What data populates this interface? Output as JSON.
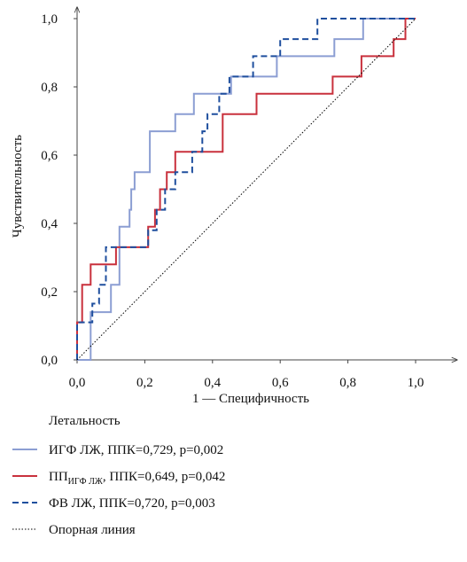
{
  "chart_data": {
    "type": "line",
    "xlabel": "1 — Специфичность",
    "ylabel": "Чувствительность",
    "xlim": [
      0,
      1
    ],
    "ylim": [
      0,
      1
    ],
    "xticks": [
      {
        "value": 0,
        "label": "0,0"
      },
      {
        "value": 0.2,
        "label": "0,2"
      },
      {
        "value": 0.4,
        "label": "0,4"
      },
      {
        "value": 0.6,
        "label": "0,6"
      },
      {
        "value": 0.8,
        "label": "0,8"
      },
      {
        "value": 1,
        "label": "1,0"
      }
    ],
    "yticks": [
      {
        "value": 0,
        "label": "0,0"
      },
      {
        "value": 0.2,
        "label": "0,2"
      },
      {
        "value": 0.4,
        "label": "0,4"
      },
      {
        "value": 0.6,
        "label": "0,6"
      },
      {
        "value": 0.8,
        "label": "0,8"
      },
      {
        "value": 1,
        "label": "1,0"
      }
    ],
    "legend_title": "Летальность",
    "series": [
      {
        "name": "ИГФ ЛЖ, ППК=0,729, p=0,002",
        "color": "#8c9ed3",
        "dash": "solid",
        "x": [
          0,
          0.04,
          0.04,
          0.1,
          0.1,
          0.125,
          0.125,
          0.155,
          0.155,
          0.16,
          0.16,
          0.17,
          0.17,
          0.215,
          0.215,
          0.29,
          0.29,
          0.345,
          0.345,
          0.455,
          0.455,
          0.59,
          0.59,
          0.76,
          0.76,
          0.845,
          0.845,
          1.0
        ],
        "values": [
          0,
          0,
          0.14,
          0.14,
          0.22,
          0.22,
          0.39,
          0.39,
          0.44,
          0.44,
          0.5,
          0.5,
          0.55,
          0.55,
          0.67,
          0.67,
          0.72,
          0.72,
          0.78,
          0.78,
          0.83,
          0.83,
          0.89,
          0.89,
          0.94,
          0.94,
          1.0,
          1.0
        ]
      },
      {
        "name": "ПП",
        "name_sub": "ИГФ ЛЖ",
        "name_tail": ", ППК=0,649, p=0,042",
        "color": "#c9313d",
        "dash": "solid",
        "x": [
          0,
          0,
          0.015,
          0.015,
          0.04,
          0.04,
          0.115,
          0.115,
          0.21,
          0.21,
          0.23,
          0.23,
          0.245,
          0.245,
          0.265,
          0.265,
          0.29,
          0.29,
          0.43,
          0.43,
          0.53,
          0.53,
          0.755,
          0.755,
          0.84,
          0.84,
          0.935,
          0.935,
          0.97,
          0.97,
          1.0
        ],
        "values": [
          0,
          0.11,
          0.11,
          0.22,
          0.22,
          0.28,
          0.28,
          0.33,
          0.33,
          0.39,
          0.39,
          0.44,
          0.44,
          0.5,
          0.5,
          0.55,
          0.55,
          0.61,
          0.61,
          0.72,
          0.72,
          0.78,
          0.78,
          0.83,
          0.83,
          0.89,
          0.89,
          0.94,
          0.94,
          1.0,
          1.0
        ]
      },
      {
        "name": "ФВ ЛЖ, ППК=0,720, p=0,003",
        "color": "#1f4f9e",
        "dash": "dashed",
        "x": [
          0,
          0,
          0.045,
          0.045,
          0.065,
          0.065,
          0.085,
          0.085,
          0.21,
          0.21,
          0.235,
          0.235,
          0.26,
          0.26,
          0.29,
          0.29,
          0.34,
          0.34,
          0.37,
          0.37,
          0.385,
          0.385,
          0.42,
          0.42,
          0.45,
          0.45,
          0.52,
          0.52,
          0.6,
          0.6,
          0.71,
          0.71,
          1.0
        ],
        "values": [
          0,
          0.11,
          0.11,
          0.165,
          0.165,
          0.22,
          0.22,
          0.33,
          0.33,
          0.38,
          0.38,
          0.44,
          0.44,
          0.5,
          0.5,
          0.55,
          0.55,
          0.61,
          0.61,
          0.67,
          0.67,
          0.72,
          0.72,
          0.78,
          0.78,
          0.83,
          0.83,
          0.89,
          0.89,
          0.94,
          0.94,
          1.0,
          1.0
        ]
      },
      {
        "name": "Опорная линия",
        "color": "#000000",
        "dash": "dotted",
        "x": [
          0,
          1
        ],
        "values": [
          0,
          1
        ]
      }
    ]
  }
}
